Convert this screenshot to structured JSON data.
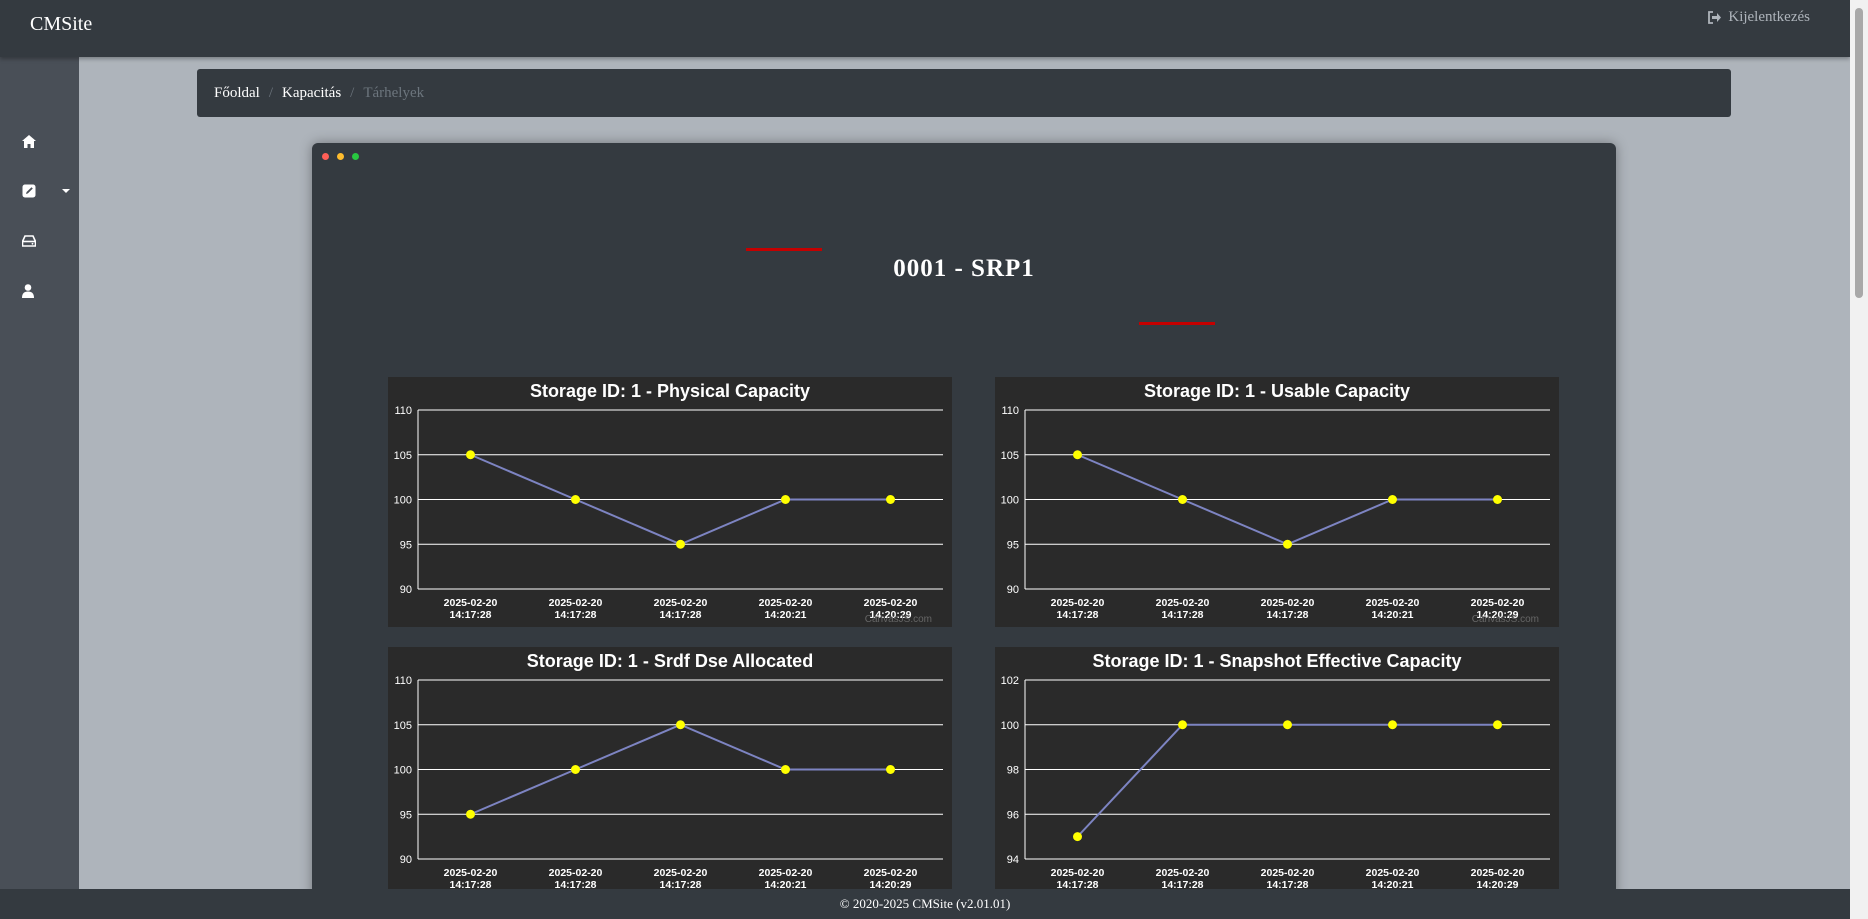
{
  "app": {
    "brand": "CMSite",
    "logout_label": "Kijelentkezés"
  },
  "breadcrumb": {
    "home": "Főoldal",
    "capacity": "Kapacitás",
    "current": "Tárhelyek",
    "separator": "/"
  },
  "page": {
    "title": "0001 - SRP1"
  },
  "footer": {
    "text": "© 2020-2025 CMSite (v2.01.01)"
  },
  "colors": {
    "line": "#7d84c2",
    "marker": "#ffff00",
    "grid": "#ffffff",
    "accent_line": "#c40000"
  },
  "chart_data": [
    {
      "type": "line",
      "title": "Storage ID: 1 - Physical Capacity",
      "x": [
        "2025-02-20 14:17:28",
        "2025-02-20 14:17:28",
        "2025-02-20 14:17:28",
        "2025-02-20 14:20:21",
        "2025-02-20 14:20:29"
      ],
      "values": [
        105,
        100,
        95,
        100,
        100
      ],
      "ylim": [
        90,
        110
      ],
      "yticks": [
        90,
        95,
        100,
        105,
        110
      ],
      "credit": "CanvasJS.com"
    },
    {
      "type": "line",
      "title": "Storage ID: 1 - Usable Capacity",
      "x": [
        "2025-02-20 14:17:28",
        "2025-02-20 14:17:28",
        "2025-02-20 14:17:28",
        "2025-02-20 14:20:21",
        "2025-02-20 14:20:29"
      ],
      "values": [
        105,
        100,
        95,
        100,
        100
      ],
      "ylim": [
        90,
        110
      ],
      "yticks": [
        90,
        95,
        100,
        105,
        110
      ],
      "credit": "CanvasJS.com"
    },
    {
      "type": "line",
      "title": "Storage ID: 1 - Srdf Dse Allocated",
      "x": [
        "2025-02-20 14:17:28",
        "2025-02-20 14:17:28",
        "2025-02-20 14:17:28",
        "2025-02-20 14:20:21",
        "2025-02-20 14:20:29"
      ],
      "values": [
        95,
        100,
        105,
        100,
        100
      ],
      "ylim": [
        90,
        110
      ],
      "yticks": [
        90,
        95,
        100,
        105,
        110
      ]
    },
    {
      "type": "line",
      "title": "Storage ID: 1 - Snapshot Effective Capacity",
      "x": [
        "2025-02-20 14:17:28",
        "2025-02-20 14:17:28",
        "2025-02-20 14:17:28",
        "2025-02-20 14:20:21",
        "2025-02-20 14:20:29"
      ],
      "values": [
        95,
        100,
        100,
        100,
        100
      ],
      "ylim": [
        94,
        102
      ],
      "yticks": [
        94,
        96,
        98,
        100,
        102
      ]
    }
  ]
}
